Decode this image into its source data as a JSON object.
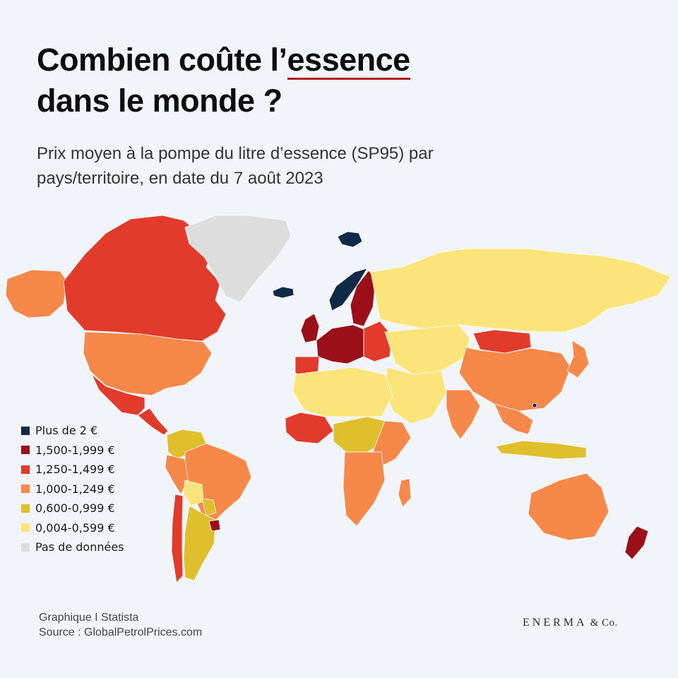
{
  "title": {
    "line1_before": "Combien coûte l’",
    "line1_highlight": "essence",
    "line2": "dans le monde ?"
  },
  "subtitle": {
    "line1": "Prix moyen à la pompe du litre d’essence (SP95) par",
    "line2": "pays/territoire, en date du 7 août 2023"
  },
  "legend": [
    {
      "key": "over2",
      "label": "Plus de 2 €",
      "color": "#0e2a47"
    },
    {
      "key": "c1500",
      "label": "1,500-1,999 €",
      "color": "#9b1018"
    },
    {
      "key": "c1250",
      "label": "1,250-1,499 €",
      "color": "#e23b2c"
    },
    {
      "key": "c1000",
      "label": "1,000-1,249 €",
      "color": "#f6894a"
    },
    {
      "key": "c600",
      "label": "0,600-0,999 €",
      "color": "#e0bf2d"
    },
    {
      "key": "c004",
      "label": "0,004-0,599 €",
      "color": "#fbe57a"
    },
    {
      "key": "nodata",
      "label": "Pas de données",
      "color": "#dddddd"
    }
  ],
  "map_regions": [
    {
      "name": "Alaska",
      "category": "c1000"
    },
    {
      "name": "Canada",
      "category": "c1250"
    },
    {
      "name": "Greenland",
      "category": "nodata"
    },
    {
      "name": "Iceland",
      "category": "over2"
    },
    {
      "name": "Svalbard",
      "category": "over2"
    },
    {
      "name": "United States",
      "category": "c1000"
    },
    {
      "name": "Mexico",
      "category": "c1250"
    },
    {
      "name": "Central America",
      "category": "c1250"
    },
    {
      "name": "Colombia / Venezuela",
      "category": "c600"
    },
    {
      "name": "Brazil",
      "category": "c1000"
    },
    {
      "name": "Peru",
      "category": "c1000"
    },
    {
      "name": "Bolivia",
      "category": "c004"
    },
    {
      "name": "Paraguay",
      "category": "c600"
    },
    {
      "name": "Argentina",
      "category": "c600"
    },
    {
      "name": "Chile",
      "category": "c1250"
    },
    {
      "name": "Uruguay",
      "category": "c1500"
    },
    {
      "name": "Norway",
      "category": "over2"
    },
    {
      "name": "Sweden / Finland",
      "category": "c1500"
    },
    {
      "name": "United Kingdom",
      "category": "c1500"
    },
    {
      "name": "Western Europe",
      "category": "c1500"
    },
    {
      "name": "Iberia",
      "category": "c1250"
    },
    {
      "name": "Eastern Europe",
      "category": "c1250"
    },
    {
      "name": "Russia",
      "category": "c004"
    },
    {
      "name": "Kazakhstan / Central Asia",
      "category": "c004"
    },
    {
      "name": "Mongolia",
      "category": "c1250"
    },
    {
      "name": "China",
      "category": "c1000"
    },
    {
      "name": "Japan",
      "category": "c1000"
    },
    {
      "name": "Middle East",
      "category": "c004"
    },
    {
      "name": "India",
      "category": "c1000"
    },
    {
      "name": "Southeast Asia",
      "category": "c1000"
    },
    {
      "name": "Indonesia",
      "category": "c600"
    },
    {
      "name": "Australia",
      "category": "c1000"
    },
    {
      "name": "New Zealand",
      "category": "c1500"
    },
    {
      "name": "North Africa",
      "category": "c004"
    },
    {
      "name": "West Africa",
      "category": "c1250"
    },
    {
      "name": "Central Africa",
      "category": "c600"
    },
    {
      "name": "East Africa",
      "category": "c1000"
    },
    {
      "name": "Southern Africa",
      "category": "c1000"
    },
    {
      "name": "Madagascar",
      "category": "c1000"
    },
    {
      "name": "Hong Kong",
      "category": "over2"
    }
  ],
  "footer": {
    "credit": "Graphique I Statista",
    "source": "Source : GlobalPetrolPrices.com"
  },
  "logo": {
    "main": "ENERMA",
    "suffix": "& Co."
  }
}
